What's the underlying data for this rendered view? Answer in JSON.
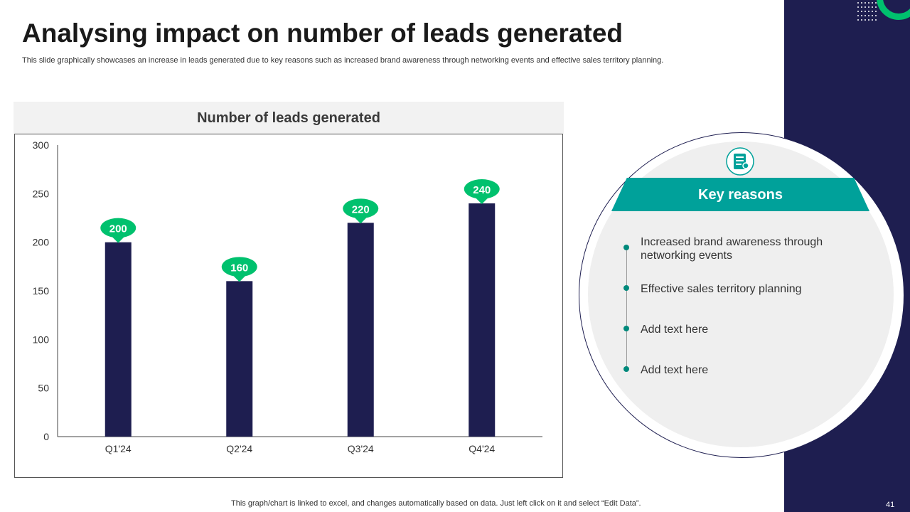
{
  "slide": {
    "title": "Analysing impact on number of leads generated",
    "subtitle": "This slide graphically showcases an increase in leads generated due to key reasons such as increased brand awareness through networking events and effective sales territory planning.",
    "footnote": "This graph/chart is linked to excel,  and changes automatically based on data. Just left click on it and select “Edit Data”.",
    "page_number": "41"
  },
  "colors": {
    "bar": "#1e1e50",
    "label_bubble": "#00c16e",
    "accent_band": "#1e1e50",
    "banner": "#00a19a"
  },
  "chart_data": {
    "type": "bar",
    "title": "Number of leads generated",
    "categories": [
      "Q1'24",
      "Q2'24",
      "Q3'24",
      "Q4'24"
    ],
    "values": [
      200,
      160,
      220,
      240
    ],
    "ylim": [
      0,
      300
    ],
    "yticks": [
      0,
      50,
      100,
      150,
      200,
      250,
      300
    ],
    "xlabel": "",
    "ylabel": "",
    "grid": false,
    "legend": "none",
    "data_labels": true
  },
  "reasons": {
    "icon": "report-icon",
    "title": "Key reasons",
    "items": [
      "Increased brand awareness through networking events",
      "Effective sales territory planning",
      "Add text here",
      "Add text here"
    ]
  }
}
